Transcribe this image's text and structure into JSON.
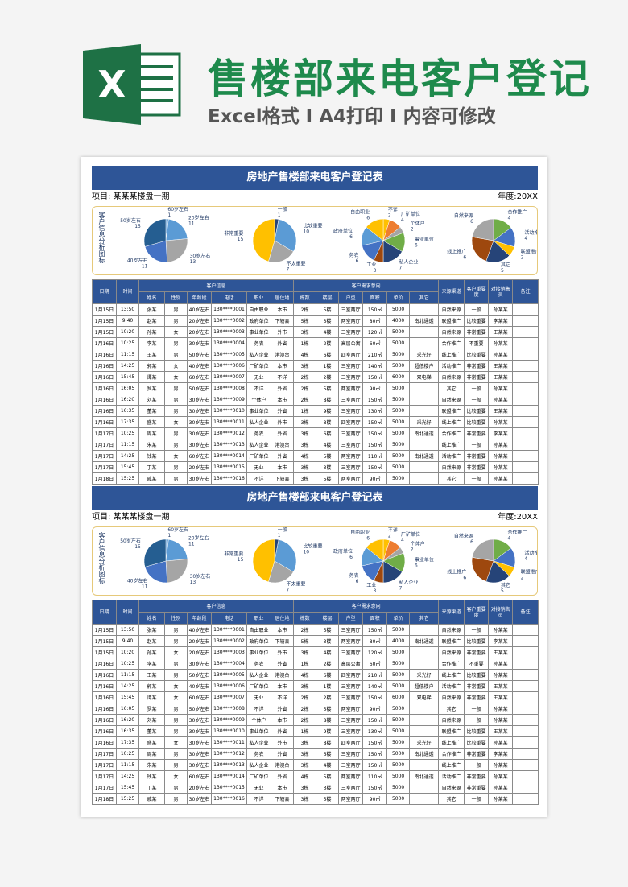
{
  "header": {
    "icon_letter": "X",
    "title": "售楼部来电客户登记",
    "subtitle": "Excel格式 I A4打印 I 内容可修改"
  },
  "sheet": {
    "title": "房地产售楼部来电客户登记表",
    "project": "项目: 某某某楼盘一期",
    "year": "年度:20XX",
    "analysis_label": "客户信息分析图标",
    "pies": [
      {
        "type": "pie",
        "labels": [
          "60岁左右",
          "20岁左右",
          "30岁左右",
          "40岁左右",
          "50岁左右"
        ],
        "values": [
          1,
          11,
          13,
          11,
          15
        ],
        "colors": [
          "#5b9bd5",
          "#5b9bd5",
          "#a5a5a5",
          "#4472c4",
          "#255e91"
        ]
      },
      {
        "type": "pie",
        "labels": [
          "一般",
          "比较重要",
          "不太重要",
          "非常重要"
        ],
        "values": [
          1,
          10,
          7,
          15
        ],
        "colors": [
          "#264478",
          "#5b9bd5",
          "#a5a5a5",
          "#ffc000"
        ]
      },
      {
        "type": "pie",
        "labels": [
          "不详",
          "厂矿单位",
          "个体户",
          "事业单位",
          "私人企业",
          "工业",
          "务农",
          "政府单位",
          "自由职业"
        ],
        "values": [
          2,
          4,
          2,
          6,
          7,
          3,
          6,
          6,
          6
        ],
        "colors": [
          "#ffc000",
          "#ed7d31",
          "#a5a5a5",
          "#70ad47",
          "#264478",
          "#9e480e",
          "#4472c4",
          "#5b9bd5",
          "#ffc000"
        ]
      },
      {
        "type": "pie",
        "labels": [
          "合作推广",
          "活动推广",
          "联盟推广",
          "其它",
          "线上推广",
          "自然来源"
        ],
        "values": [
          4,
          4,
          2,
          5,
          6,
          6
        ],
        "colors": [
          "#70ad47",
          "#4472c4",
          "#ffc000",
          "#264478",
          "#9e480e",
          "#a5a5a5"
        ]
      }
    ],
    "table": {
      "groups": [
        "客户信息",
        "客户需求意向"
      ],
      "columns": [
        "日期",
        "时间",
        "姓名",
        "性别",
        "年龄段",
        "电话",
        "职业",
        "居住地",
        "栋数",
        "楼层",
        "户型",
        "面积",
        "单价",
        "其它",
        "来源渠道",
        "客户重要度",
        "对接销售员",
        "备注"
      ],
      "rows": [
        [
          "1月15日",
          "13:50",
          "张某",
          "男",
          "40岁左右",
          "130****0001",
          "自由职业",
          "本市",
          "2栋",
          "5楼",
          "三室两厅",
          "150㎡",
          5000,
          null,
          "自然来源",
          "一般",
          "孙某某",
          null
        ],
        [
          "1月15日",
          "9:40",
          "赵某",
          "男",
          "20岁左右",
          "130****0002",
          "政府单位",
          "下辖县",
          "5栋",
          "3楼",
          "两室两厅",
          "80㎡",
          4000,
          "南北通透",
          "联盟推广",
          "比较重要",
          "李某某",
          null
        ],
        [
          "1月15日",
          "10:20",
          "孙某",
          "女",
          "20岁左右",
          "130****0003",
          "事业单位",
          "外市",
          "3栋",
          "4楼",
          "三室两厅",
          "120㎡",
          5000,
          null,
          "自然来源",
          "非常重要",
          "王某某",
          null
        ],
        [
          "1月16日",
          "10:25",
          "李某",
          "男",
          "30岁左右",
          "130****0004",
          "务农",
          "外省",
          "1栋",
          "2楼",
          "高层公寓",
          "60㎡",
          5000,
          null,
          "合作推广",
          "不重要",
          "孙某某",
          null
        ],
        [
          "1月16日",
          "11:15",
          "王某",
          "男",
          "50岁左右",
          "130****0005",
          "私人企业",
          "港澳台",
          "4栋",
          "6楼",
          "四室两厅",
          "210㎡",
          5000,
          "采光好",
          "线上推广",
          "比较重要",
          "孙某某",
          null
        ],
        [
          "1月16日",
          "14:25",
          "郭某",
          "女",
          "40岁左右",
          "130****0006",
          "厂矿单位",
          "本市",
          "3栋",
          "1楼",
          "三室两厅",
          "140㎡",
          5000,
          "超低楼户",
          "活动推广",
          "非常重要",
          "王某某",
          null
        ],
        [
          "1月16日",
          "15:45",
          "谭某",
          "女",
          "60岁左右",
          "130****0007",
          "无业",
          "不详",
          "2栋",
          "2楼",
          "三室两厅",
          "150㎡",
          6000,
          "双电梯",
          "自然来源",
          "非常重要",
          "王某某",
          null
        ],
        [
          "1月16日",
          "16:05",
          "罗某",
          "男",
          "50岁左右",
          "130****0008",
          "不详",
          "外省",
          "2栋",
          "5楼",
          "两室两厅",
          "90㎡",
          5000,
          null,
          "其它",
          "一般",
          "孙某某",
          null
        ],
        [
          "1月16日",
          "16:20",
          "刘某",
          "男",
          "30岁左右",
          "130****0009",
          "个体户",
          "本市",
          "2栋",
          "8楼",
          "三室两厅",
          "150㎡",
          5000,
          null,
          "自然来源",
          "一般",
          "孙某某",
          null
        ],
        [
          "1月16日",
          "16:35",
          "董某",
          "男",
          "30岁左右",
          "130****0010",
          "事业单位",
          "外省",
          "1栋",
          "9楼",
          "三室两厅",
          "130㎡",
          5000,
          null,
          "联盟推广",
          "比较重要",
          "王某某",
          null
        ],
        [
          "1月16日",
          "17:35",
          "盛某",
          "女",
          "30岁左右",
          "130****0011",
          "私人企业",
          "外市",
          "3栋",
          "8楼",
          "四室两厅",
          "150㎡",
          5000,
          "采光好",
          "线上推广",
          "比较重要",
          "孙某某",
          null
        ],
        [
          "1月17日",
          "10:25",
          "周某",
          "男",
          "30岁左右",
          "130****0012",
          "务农",
          "外省",
          "3栋",
          "6楼",
          "三室两厅",
          "150㎡",
          5000,
          "南北通透",
          "合作推广",
          "非常重要",
          "李某某",
          null
        ],
        [
          "1月17日",
          "11:15",
          "朱某",
          "男",
          "30岁左右",
          "130****0013",
          "私人企业",
          "港澳台",
          "3栋",
          "4楼",
          "三室两厅",
          "150㎡",
          5000,
          null,
          "线上推广",
          "一般",
          "孙某某",
          null
        ],
        [
          "1月17日",
          "14:25",
          "钱某",
          "女",
          "60岁左右",
          "130****0014",
          "厂矿单位",
          "外省",
          "4栋",
          "5楼",
          "两室两厅",
          "110㎡",
          5000,
          "南北通透",
          "活动推广",
          "非常重要",
          "孙某某",
          null
        ],
        [
          "1月17日",
          "15:45",
          "丁某",
          "男",
          "20岁左右",
          "130****0015",
          "无业",
          "本市",
          "3栋",
          "3楼",
          "三室两厅",
          "150㎡",
          5000,
          null,
          "自然来源",
          "非常重要",
          "孙某某",
          null
        ],
        [
          "1月18日",
          "15:25",
          "戚某",
          "男",
          "30岁左右",
          "130****0016",
          "不详",
          "下辖县",
          "3栋",
          "5楼",
          "两室两厅",
          "90㎡",
          5000,
          null,
          "其它",
          "一般",
          "孙某某",
          null
        ]
      ]
    }
  }
}
